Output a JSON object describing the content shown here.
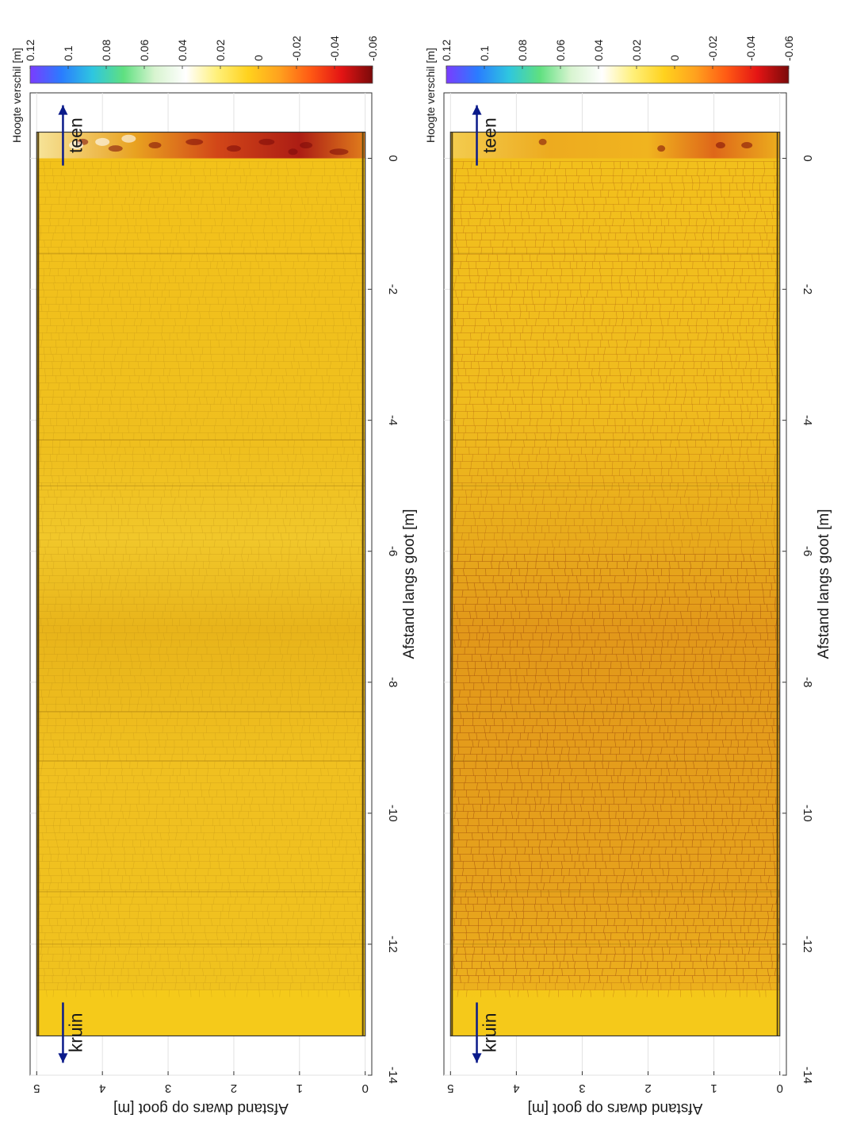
{
  "chart_data": [
    {
      "type": "heatmap",
      "panel": "top",
      "title": "",
      "xlabel": "Afstand langs goot [m]",
      "ylabel": "Afstand dwars op goot [m]",
      "xlim": [
        -14,
        1
      ],
      "ylim": [
        -0.1,
        5.1
      ],
      "x_ticks": [
        0,
        -2,
        -4,
        -6,
        -8,
        -10,
        -12,
        -14
      ],
      "y_ticks": [
        5,
        4,
        3,
        2,
        1,
        0
      ],
      "grid": true,
      "data_extent": {
        "x": [
          -13.4,
          0.4
        ],
        "y": [
          0,
          5
        ]
      },
      "colorbar": {
        "label": "Hoogte verschil [m]",
        "range": [
          0.12,
          -0.06
        ],
        "ticks": [
          0.12,
          0.1,
          0.08,
          0.06,
          0.04,
          0.02,
          0,
          -0.02,
          -0.04,
          -0.06
        ]
      },
      "annotations": [
        {
          "text": "teen",
          "arrow": "toward positive x",
          "x": 0.35,
          "y": 4.6
        },
        {
          "text": "kruin",
          "arrow": "toward negative x",
          "x": -13.35,
          "y": 4.6
        }
      ],
      "summary": "Mostly near -0.01 to 0 m (yellow) across the revetment; strong erosion (-0.04 to -0.06 m, dark red) along the toe at x about 0.2 to 0.4, and a slightly darker band around x -7.5 to -9."
    },
    {
      "type": "heatmap",
      "panel": "bottom",
      "title": "",
      "xlabel": "Afstand langs goot [m]",
      "ylabel": "Afstand dwars op goot [m]",
      "xlim": [
        -14,
        1
      ],
      "ylim": [
        -0.1,
        5.1
      ],
      "x_ticks": [
        0,
        -2,
        -4,
        -6,
        -8,
        -10,
        -12,
        -14
      ],
      "y_ticks": [
        5,
        4,
        3,
        2,
        1,
        0
      ],
      "grid": true,
      "data_extent": {
        "x": [
          -13.4,
          0.4
        ],
        "y": [
          0,
          5
        ]
      },
      "colorbar": {
        "label": "Hoogte verschil [m]",
        "range": [
          0.12,
          -0.06
        ],
        "ticks": [
          0.12,
          0.1,
          0.08,
          0.06,
          0.04,
          0.02,
          0,
          -0.02,
          -0.04,
          -0.06
        ]
      },
      "annotations": [
        {
          "text": "teen",
          "arrow": "toward positive x",
          "x": 0.35,
          "y": 4.6
        },
        {
          "text": "kruin",
          "arrow": "toward negative x",
          "x": -13.35,
          "y": 4.6
        }
      ],
      "summary": "Yellow-orange field (about -0.01 to -0.02 m) with pronounced dark-red joint network from x about -6 to -12.5; localized red patches at the toe near x 0.3."
    }
  ],
  "colormap": [
    "#7a3cff",
    "#2a7cff",
    "#2ec6e0",
    "#5fe080",
    "#d8f4d0",
    "#ffffff",
    "#fff07a",
    "#ffd21e",
    "#ffa21e",
    "#ff5a14",
    "#e41414",
    "#7a0a0a"
  ]
}
